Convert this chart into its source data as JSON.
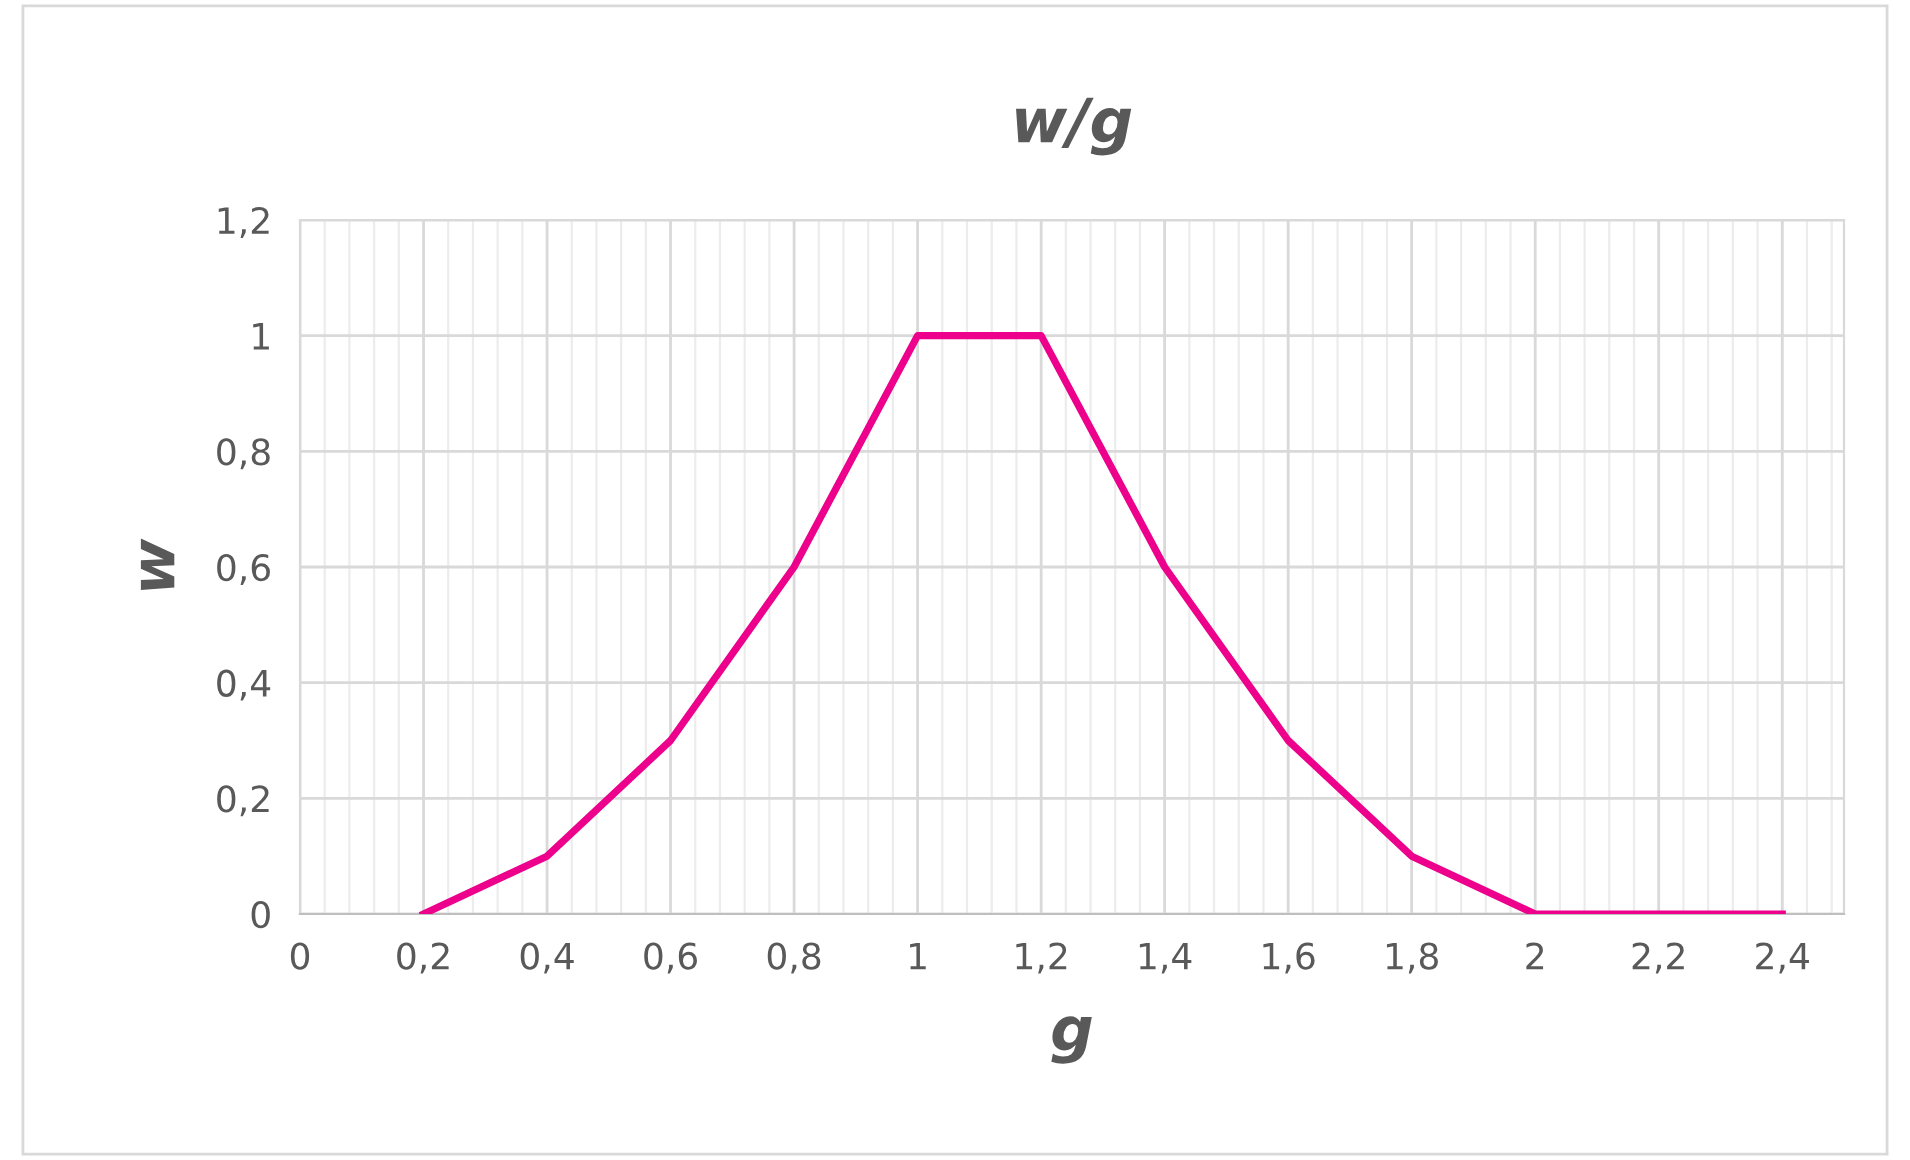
{
  "chart_data": {
    "type": "line",
    "title": "w/g",
    "xlabel": "g",
    "ylabel": "w",
    "x": [
      0.2,
      0.4,
      0.6,
      0.8,
      1,
      1.2,
      1.4,
      1.6,
      1.8,
      2,
      2.2,
      2.4
    ],
    "series": [
      {
        "color": "#ec008c",
        "values": [
          0,
          0.1,
          0.3,
          0.6,
          1,
          1,
          0.6,
          0.3,
          0.1,
          0,
          0,
          0
        ]
      }
    ],
    "xlim": [
      0,
      2.5
    ],
    "xticks": [
      0,
      {
        "value": 0.2,
        "label": "0,2"
      },
      {
        "value": 0.4,
        "label": "0,4"
      },
      {
        "value": 0.6,
        "label": "0,6"
      },
      {
        "value": 0.8,
        "label": "0,8"
      },
      1,
      {
        "value": 1.2,
        "label": "1,2"
      },
      {
        "value": 1.4,
        "label": "1,4"
      },
      {
        "value": 1.6,
        "label": "1,6"
      },
      {
        "value": 1.8,
        "label": "1,8"
      },
      2,
      {
        "value": 2.2,
        "label": "2,2"
      },
      {
        "value": 2.4,
        "label": "2,4"
      }
    ],
    "ylim": [
      0,
      1.2
    ],
    "yticks": [
      0,
      {
        "value": 0.2,
        "label": "0,2"
      },
      {
        "value": 0.4,
        "label": "0,4"
      },
      {
        "value": 0.6,
        "label": "0,6"
      },
      {
        "value": 0.8,
        "label": "0,8"
      },
      1,
      {
        "value": 1.2,
        "label": "1,2"
      }
    ],
    "grid": true,
    "marker": "none",
    "line_style": "solid",
    "legend": false
  }
}
